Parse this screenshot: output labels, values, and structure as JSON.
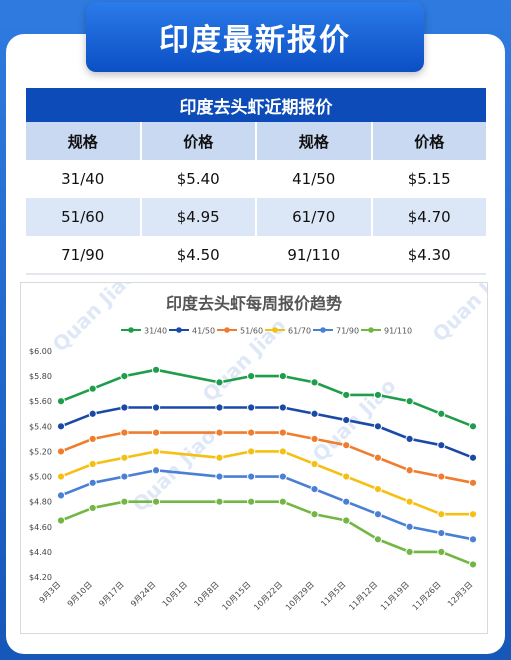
{
  "banner": {
    "title": "印度最新报价"
  },
  "table": {
    "title": "印度去头虾近期报价",
    "headers": [
      "规格",
      "价格",
      "规格",
      "价格"
    ],
    "rows": [
      [
        "31/40",
        "$5.40",
        "41/50",
        "$5.15"
      ],
      [
        "51/60",
        "$4.95",
        "61/70",
        "$4.70"
      ],
      [
        "71/90",
        "$4.50",
        "91/110",
        "$4.30"
      ]
    ]
  },
  "colors": {
    "banner": "#0b4fc4",
    "table_title": "#0d4cb8",
    "table_head": "#c9d9f2",
    "table_alt_row": "#dbe6f6"
  },
  "watermark": {
    "text": "Quan Jiao"
  },
  "chart_data": {
    "type": "line",
    "title": "印度去头虾每周报价趋势",
    "xlabel": "",
    "ylabel": "",
    "ylim": [
      4.2,
      6.0
    ],
    "yticks": [
      "$4.20",
      "$4.40",
      "$4.60",
      "$4.80",
      "$5.00",
      "$5.20",
      "$5.40",
      "$5.60",
      "$5.80",
      "$6.00"
    ],
    "ytick_values": [
      4.2,
      4.4,
      4.6,
      4.8,
      5.0,
      5.2,
      5.4,
      5.6,
      5.8,
      6.0
    ],
    "grid": false,
    "legend_position": "top",
    "categories": [
      "9月3日",
      "9月10日",
      "9月17日",
      "9月24日",
      "10月1日",
      "10月8日",
      "10月15日",
      "10月22日",
      "10月29日",
      "11月5日",
      "11月12日",
      "11月19日",
      "11月26日",
      "12月3日"
    ],
    "series": [
      {
        "name": "31/40",
        "color": "#1e9e4a",
        "values": [
          5.6,
          5.7,
          5.8,
          5.85,
          null,
          5.75,
          5.8,
          5.8,
          5.75,
          5.65,
          5.65,
          5.6,
          5.5,
          5.4
        ]
      },
      {
        "name": "41/50",
        "color": "#1a49a8",
        "values": [
          5.4,
          5.5,
          5.55,
          5.55,
          null,
          5.55,
          5.55,
          5.55,
          5.5,
          5.45,
          5.4,
          5.3,
          5.25,
          5.15
        ]
      },
      {
        "name": "51/60",
        "color": "#f07c2e",
        "values": [
          5.2,
          5.3,
          5.35,
          5.35,
          null,
          5.35,
          5.35,
          5.35,
          5.3,
          5.25,
          5.15,
          5.05,
          5.0,
          4.95
        ]
      },
      {
        "name": "61/70",
        "color": "#f5c014",
        "values": [
          5.0,
          5.1,
          5.15,
          5.2,
          null,
          5.15,
          5.2,
          5.2,
          5.1,
          5.0,
          4.9,
          4.8,
          4.7,
          4.7
        ]
      },
      {
        "name": "71/90",
        "color": "#4a7fd6",
        "values": [
          4.85,
          4.95,
          5.0,
          5.05,
          null,
          5.0,
          5.0,
          5.0,
          4.9,
          4.8,
          4.7,
          4.6,
          4.55,
          4.5
        ]
      },
      {
        "name": "91/110",
        "color": "#72b644",
        "values": [
          4.65,
          4.75,
          4.8,
          4.8,
          null,
          4.8,
          4.8,
          4.8,
          4.7,
          4.65,
          4.5,
          4.4,
          4.4,
          4.3
        ]
      }
    ]
  }
}
